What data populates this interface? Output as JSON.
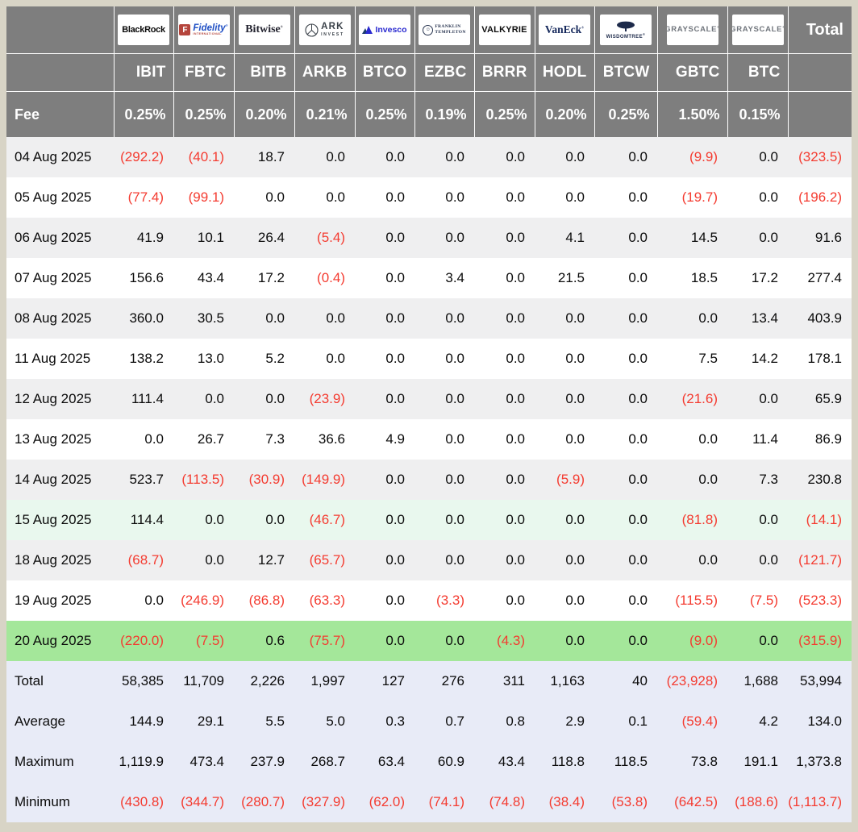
{
  "chart_data": {
    "type": "table",
    "fee_label": "Fee",
    "total_header": "Total",
    "columns": [
      {
        "provider": "BlackRock",
        "ticker": "IBIT",
        "fee": "0.25%",
        "logo_type": "blackrock",
        "logo_text": [
          "BlackRock"
        ]
      },
      {
        "provider": "Fidelity",
        "ticker": "FBTC",
        "fee": "0.25%",
        "logo_type": "fidelity",
        "logo_text": [
          "F",
          "Fidelity",
          "INTERNATIONAL"
        ]
      },
      {
        "provider": "Bitwise",
        "ticker": "BITB",
        "fee": "0.20%",
        "logo_type": "bitwise",
        "logo_text": [
          "Bitwise"
        ]
      },
      {
        "provider": "ARK Invest",
        "ticker": "ARKB",
        "fee": "0.21%",
        "logo_type": "ark",
        "logo_text": [
          "ARK",
          "INVEST"
        ]
      },
      {
        "provider": "Invesco",
        "ticker": "BTCO",
        "fee": "0.25%",
        "logo_type": "invesco",
        "logo_text": [
          "Invesco"
        ]
      },
      {
        "provider": "Franklin Templeton",
        "ticker": "EZBC",
        "fee": "0.19%",
        "logo_type": "franklin",
        "logo_text": [
          "FRANKLIN",
          "TEMPLETON"
        ]
      },
      {
        "provider": "Valkyrie",
        "ticker": "BRRR",
        "fee": "0.25%",
        "logo_type": "valkyrie",
        "logo_text": [
          "VALKYRIE"
        ]
      },
      {
        "provider": "VanEck",
        "ticker": "HODL",
        "fee": "0.20%",
        "logo_type": "vaneck",
        "logo_text": [
          "VanEck"
        ]
      },
      {
        "provider": "WisdomTree",
        "ticker": "BTCW",
        "fee": "0.25%",
        "logo_type": "wisdomtree",
        "logo_text": [
          "WISDOMTREE"
        ]
      },
      {
        "provider": "Grayscale",
        "ticker": "GBTC",
        "fee": "1.50%",
        "logo_type": "grayscale",
        "logo_text": [
          "GRAYSCALE"
        ]
      },
      {
        "provider": "Grayscale",
        "ticker": "BTC",
        "fee": "0.15%",
        "logo_type": "grayscale",
        "logo_text": [
          "GRAYSCALE"
        ]
      }
    ],
    "rows": [
      {
        "date": "04 Aug 2025",
        "bg": "stripe",
        "values": [
          "(292.2)",
          "(40.1)",
          "18.7",
          "0.0",
          "0.0",
          "0.0",
          "0.0",
          "0.0",
          "0.0",
          "(9.9)",
          "0.0",
          "(323.5)"
        ]
      },
      {
        "date": "05 Aug 2025",
        "bg": "white",
        "values": [
          "(77.4)",
          "(99.1)",
          "0.0",
          "0.0",
          "0.0",
          "0.0",
          "0.0",
          "0.0",
          "0.0",
          "(19.7)",
          "0.0",
          "(196.2)"
        ]
      },
      {
        "date": "06 Aug 2025",
        "bg": "stripe",
        "values": [
          "41.9",
          "10.1",
          "26.4",
          "(5.4)",
          "0.0",
          "0.0",
          "0.0",
          "4.1",
          "0.0",
          "14.5",
          "0.0",
          "91.6"
        ]
      },
      {
        "date": "07 Aug 2025",
        "bg": "white",
        "values": [
          "156.6",
          "43.4",
          "17.2",
          "(0.4)",
          "0.0",
          "3.4",
          "0.0",
          "21.5",
          "0.0",
          "18.5",
          "17.2",
          "277.4"
        ]
      },
      {
        "date": "08 Aug 2025",
        "bg": "stripe",
        "values": [
          "360.0",
          "30.5",
          "0.0",
          "0.0",
          "0.0",
          "0.0",
          "0.0",
          "0.0",
          "0.0",
          "0.0",
          "13.4",
          "403.9"
        ]
      },
      {
        "date": "11 Aug 2025",
        "bg": "white",
        "values": [
          "138.2",
          "13.0",
          "5.2",
          "0.0",
          "0.0",
          "0.0",
          "0.0",
          "0.0",
          "0.0",
          "7.5",
          "14.2",
          "178.1"
        ]
      },
      {
        "date": "12 Aug 2025",
        "bg": "stripe",
        "values": [
          "111.4",
          "0.0",
          "0.0",
          "(23.9)",
          "0.0",
          "0.0",
          "0.0",
          "0.0",
          "0.0",
          "(21.6)",
          "0.0",
          "65.9"
        ]
      },
      {
        "date": "13 Aug 2025",
        "bg": "white",
        "values": [
          "0.0",
          "26.7",
          "7.3",
          "36.6",
          "4.9",
          "0.0",
          "0.0",
          "0.0",
          "0.0",
          "0.0",
          "11.4",
          "86.9"
        ]
      },
      {
        "date": "14 Aug 2025",
        "bg": "stripe",
        "values": [
          "523.7",
          "(113.5)",
          "(30.9)",
          "(149.9)",
          "0.0",
          "0.0",
          "0.0",
          "(5.9)",
          "0.0",
          "0.0",
          "7.3",
          "230.8"
        ]
      },
      {
        "date": "15 Aug 2025",
        "bg": "mint",
        "values": [
          "114.4",
          "0.0",
          "0.0",
          "(46.7)",
          "0.0",
          "0.0",
          "0.0",
          "0.0",
          "0.0",
          "(81.8)",
          "0.0",
          "(14.1)"
        ]
      },
      {
        "date": "18 Aug 2025",
        "bg": "stripe",
        "values": [
          "(68.7)",
          "0.0",
          "12.7",
          "(65.7)",
          "0.0",
          "0.0",
          "0.0",
          "0.0",
          "0.0",
          "0.0",
          "0.0",
          "(121.7)"
        ]
      },
      {
        "date": "19 Aug 2025",
        "bg": "white",
        "values": [
          "0.0",
          "(246.9)",
          "(86.8)",
          "(63.3)",
          "0.0",
          "(3.3)",
          "0.0",
          "0.0",
          "0.0",
          "(115.5)",
          "(7.5)",
          "(523.3)"
        ]
      },
      {
        "date": "20 Aug 2025",
        "bg": "green",
        "values": [
          "(220.0)",
          "(7.5)",
          "0.6",
          "(75.7)",
          "0.0",
          "0.0",
          "(4.3)",
          "0.0",
          "0.0",
          "(9.0)",
          "0.0",
          "(315.9)"
        ]
      }
    ],
    "summary": [
      {
        "label": "Total",
        "values": [
          "58,385",
          "11,709",
          "2,226",
          "1,997",
          "127",
          "276",
          "311",
          "1,163",
          "40",
          "(23,928)",
          "1,688",
          "53,994"
        ]
      },
      {
        "label": "Average",
        "values": [
          "144.9",
          "29.1",
          "5.5",
          "5.0",
          "0.3",
          "0.7",
          "0.8",
          "2.9",
          "0.1",
          "(59.4)",
          "4.2",
          "134.0"
        ]
      },
      {
        "label": "Maximum",
        "values": [
          "1,119.9",
          "473.4",
          "237.9",
          "268.7",
          "63.4",
          "60.9",
          "43.4",
          "118.8",
          "118.5",
          "73.8",
          "191.1",
          "1,373.8"
        ]
      },
      {
        "label": "Minimum",
        "values": [
          "(430.8)",
          "(344.7)",
          "(280.7)",
          "(327.9)",
          "(62.0)",
          "(74.1)",
          "(74.8)",
          "(38.4)",
          "(53.8)",
          "(642.5)",
          "(188.6)",
          "(1,113.7)"
        ]
      }
    ]
  },
  "colors": {
    "page_border": "#d8d4c6",
    "header_bg": "#7e7e7e",
    "stripe_row": "#efeff0",
    "mint_row": "#e9f8ee",
    "green_row": "#a4e79a",
    "summary_row": "#e8ebf7",
    "negative_text": "#f43b30"
  }
}
